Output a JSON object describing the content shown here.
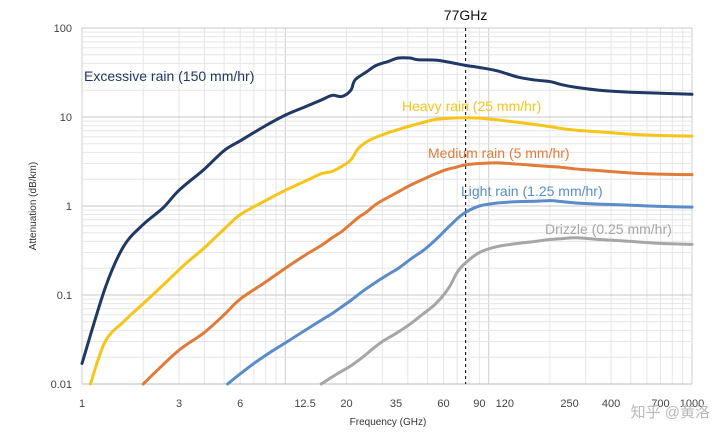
{
  "chart_data": {
    "type": "line",
    "xlabel": "Frequency (GHz)",
    "ylabel": "Attenuation (dB/km)",
    "x_scale": "log",
    "y_scale": "log",
    "xlim": [
      1,
      1000
    ],
    "ylim": [
      0.01,
      100
    ],
    "grid": true,
    "x_tick_labels": [
      "1",
      "3",
      "6",
      "12.5",
      "20",
      "35",
      "60",
      "90",
      "120",
      "250",
      "400",
      "700",
      "1000"
    ],
    "y_tick_labels": [
      "100",
      "10",
      "1",
      "0.1",
      "0.01"
    ],
    "marker": {
      "label": "77GHz",
      "x": 77
    },
    "series": [
      {
        "name": "Excessive rain (150 mm/hr)",
        "color": "#1f3864",
        "points": [
          [
            1,
            0.017
          ],
          [
            1.3,
            0.12
          ],
          [
            1.6,
            0.35
          ],
          [
            2,
            0.62
          ],
          [
            2.5,
            0.95
          ],
          [
            3,
            1.5
          ],
          [
            4,
            2.6
          ],
          [
            5,
            4.2
          ],
          [
            6,
            5.4
          ],
          [
            8,
            8
          ],
          [
            10,
            10.5
          ],
          [
            12.5,
            13
          ],
          [
            15,
            15.5
          ],
          [
            17,
            17.5
          ],
          [
            19,
            17
          ],
          [
            21,
            20
          ],
          [
            22,
            26
          ],
          [
            25,
            32
          ],
          [
            28,
            38
          ],
          [
            32,
            42
          ],
          [
            36,
            46
          ],
          [
            41,
            46
          ],
          [
            45,
            44
          ],
          [
            55,
            43.5
          ],
          [
            65,
            41
          ],
          [
            77,
            38
          ],
          [
            90,
            36
          ],
          [
            110,
            33
          ],
          [
            140,
            28
          ],
          [
            170,
            26
          ],
          [
            200,
            25
          ],
          [
            230,
            23
          ],
          [
            270,
            21.5
          ],
          [
            350,
            20
          ],
          [
            500,
            19
          ],
          [
            700,
            18.5
          ],
          [
            1000,
            18
          ]
        ]
      },
      {
        "name": "Heavy rain (25 mm/hr)",
        "color": "#f5c518",
        "points": [
          [
            1.1,
            0.01
          ],
          [
            1.3,
            0.03
          ],
          [
            1.6,
            0.05
          ],
          [
            2,
            0.08
          ],
          [
            2.6,
            0.14
          ],
          [
            3.2,
            0.22
          ],
          [
            4,
            0.34
          ],
          [
            5,
            0.55
          ],
          [
            6,
            0.8
          ],
          [
            8,
            1.15
          ],
          [
            10,
            1.5
          ],
          [
            12.5,
            1.9
          ],
          [
            15,
            2.3
          ],
          [
            17,
            2.45
          ],
          [
            19,
            2.8
          ],
          [
            21,
            3.3
          ],
          [
            23,
            4.5
          ],
          [
            26,
            5.5
          ],
          [
            30,
            6.3
          ],
          [
            35,
            7.1
          ],
          [
            45,
            8.4
          ],
          [
            55,
            9.4
          ],
          [
            65,
            9.7
          ],
          [
            77,
            9.8
          ],
          [
            90,
            9.7
          ],
          [
            110,
            9.3
          ],
          [
            140,
            8.7
          ],
          [
            170,
            8.2
          ],
          [
            200,
            7.8
          ],
          [
            230,
            7.4
          ],
          [
            270,
            7.1
          ],
          [
            350,
            6.8
          ],
          [
            500,
            6.4
          ],
          [
            700,
            6.2
          ],
          [
            1000,
            6.1
          ]
        ]
      },
      {
        "name": "Medium rain (5 mm/hr)",
        "color": "#e07b39",
        "points": [
          [
            2,
            0.01
          ],
          [
            2.4,
            0.015
          ],
          [
            3,
            0.024
          ],
          [
            4,
            0.038
          ],
          [
            5,
            0.06
          ],
          [
            6,
            0.09
          ],
          [
            8,
            0.14
          ],
          [
            10,
            0.2
          ],
          [
            12.5,
            0.28
          ],
          [
            15,
            0.36
          ],
          [
            17,
            0.44
          ],
          [
            19,
            0.52
          ],
          [
            21,
            0.63
          ],
          [
            23,
            0.75
          ],
          [
            25,
            0.85
          ],
          [
            28,
            1.05
          ],
          [
            32,
            1.25
          ],
          [
            36,
            1.45
          ],
          [
            42,
            1.75
          ],
          [
            50,
            2.1
          ],
          [
            60,
            2.5
          ],
          [
            70,
            2.75
          ],
          [
            77,
            2.9
          ],
          [
            90,
            3.0
          ],
          [
            110,
            3.05
          ],
          [
            140,
            2.95
          ],
          [
            170,
            2.85
          ],
          [
            200,
            2.78
          ],
          [
            230,
            2.72
          ],
          [
            270,
            2.6
          ],
          [
            350,
            2.5
          ],
          [
            500,
            2.35
          ],
          [
            700,
            2.28
          ],
          [
            1000,
            2.25
          ]
        ]
      },
      {
        "name": "Light rain (1.25 mm/hr)",
        "color": "#5b8cc9",
        "points": [
          [
            5.2,
            0.01
          ],
          [
            6,
            0.013
          ],
          [
            7,
            0.017
          ],
          [
            8,
            0.021
          ],
          [
            10,
            0.029
          ],
          [
            12.5,
            0.04
          ],
          [
            15,
            0.052
          ],
          [
            17,
            0.062
          ],
          [
            19,
            0.074
          ],
          [
            21,
            0.087
          ],
          [
            24,
            0.11
          ],
          [
            28,
            0.14
          ],
          [
            32,
            0.17
          ],
          [
            36,
            0.2
          ],
          [
            42,
            0.26
          ],
          [
            48,
            0.32
          ],
          [
            55,
            0.42
          ],
          [
            62,
            0.55
          ],
          [
            70,
            0.72
          ],
          [
            77,
            0.85
          ],
          [
            90,
            1.0
          ],
          [
            110,
            1.08
          ],
          [
            140,
            1.12
          ],
          [
            170,
            1.13
          ],
          [
            200,
            1.15
          ],
          [
            230,
            1.12
          ],
          [
            270,
            1.08
          ],
          [
            350,
            1.05
          ],
          [
            500,
            1.02
          ],
          [
            700,
            0.99
          ],
          [
            1000,
            0.97
          ]
        ]
      },
      {
        "name": "Drizzle (0.25 mm/hr)",
        "color": "#a6a6a6",
        "points": [
          [
            15,
            0.01
          ],
          [
            17,
            0.012
          ],
          [
            19,
            0.014
          ],
          [
            21,
            0.016
          ],
          [
            24,
            0.02
          ],
          [
            27,
            0.025
          ],
          [
            30,
            0.03
          ],
          [
            35,
            0.037
          ],
          [
            41,
            0.047
          ],
          [
            47,
            0.06
          ],
          [
            54,
            0.077
          ],
          [
            60,
            0.1
          ],
          [
            65,
            0.13
          ],
          [
            70,
            0.18
          ],
          [
            77,
            0.23
          ],
          [
            90,
            0.3
          ],
          [
            110,
            0.35
          ],
          [
            140,
            0.38
          ],
          [
            170,
            0.4
          ],
          [
            200,
            0.42
          ],
          [
            230,
            0.43
          ],
          [
            270,
            0.44
          ],
          [
            350,
            0.42
          ],
          [
            500,
            0.4
          ],
          [
            700,
            0.38
          ],
          [
            1000,
            0.37
          ]
        ]
      }
    ]
  },
  "watermark": "知乎 @黄洛"
}
